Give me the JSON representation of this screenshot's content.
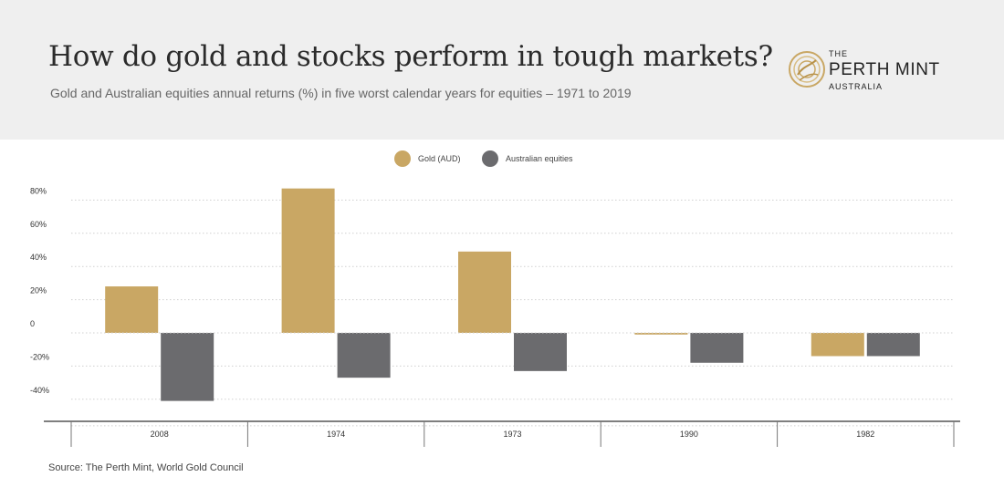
{
  "header": {
    "title": "How do gold and stocks perform in tough markets?",
    "subtitle": "Gold and Australian equities annual returns (%) in five worst calendar years for equities – 1971 to 2019"
  },
  "logo": {
    "line1": "THE",
    "line2": "PERTH MINT",
    "line3": "AUSTRALIA",
    "icon": "swan-emblem-icon"
  },
  "colors": {
    "gold": "#c9a764",
    "equities": "#6b6b6e",
    "header_bg": "#efefef"
  },
  "chart_data": {
    "type": "bar",
    "categories": [
      "2008",
      "1974",
      "1973",
      "1990",
      "1982"
    ],
    "series": [
      {
        "name": "Gold (AUD)",
        "values": [
          28,
          87,
          49,
          -1,
          -14
        ]
      },
      {
        "name": "Australian equities",
        "values": [
          -41,
          -27,
          -23,
          -18,
          -14
        ]
      }
    ],
    "y_ticks": [
      80,
      60,
      40,
      20,
      0,
      -20,
      -40
    ],
    "y_tick_labels": [
      "80%",
      "60%",
      "40%",
      "20%",
      "0",
      "-20%",
      "-40%"
    ],
    "ylim": [
      -50,
      87
    ],
    "legend_position": "top-center",
    "grid": "dotted-horizontal"
  },
  "source": "Source: The Perth Mint, World Gold Council"
}
